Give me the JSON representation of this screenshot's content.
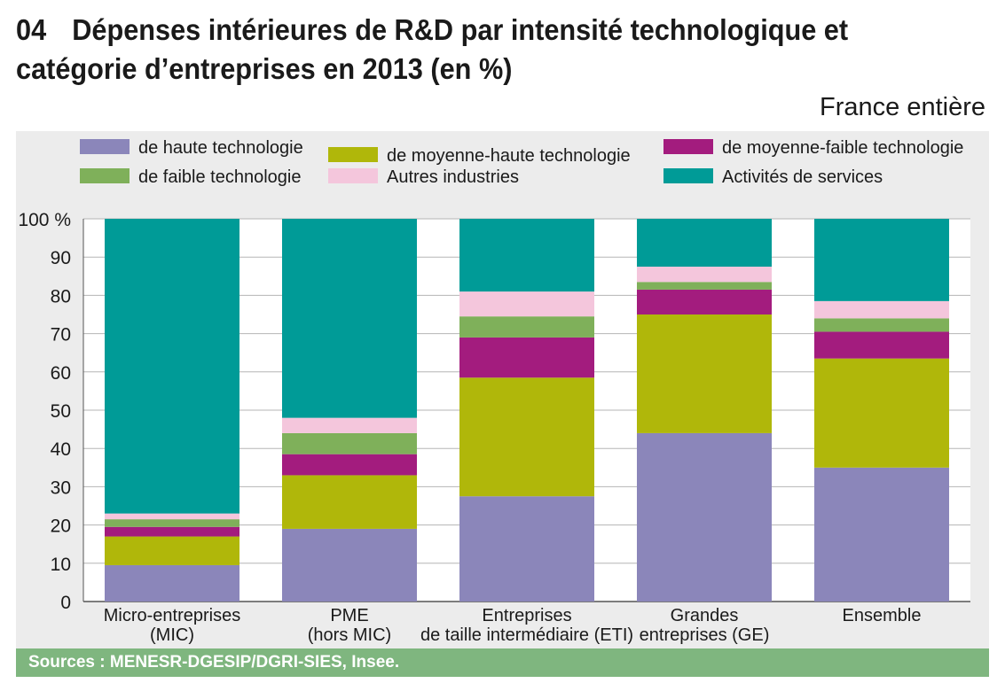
{
  "figure": {
    "number": "04",
    "title": "Dépenses intérieures de R&D par intensité technologique et catégorie d’entreprises en 2013 (en %)",
    "scope": "France entière",
    "sources": "Sources : MENESR-DGESIP/DGRI-SIES, Insee."
  },
  "chart_data": {
    "type": "bar",
    "stacked": true,
    "categories": [
      [
        "Micro-entreprises",
        "(MIC)"
      ],
      [
        "PME",
        "(hors MIC)"
      ],
      [
        "Entreprises",
        "de taille intermédiaire (ETI)"
      ],
      [
        "Grandes",
        "entreprises (GE)"
      ],
      [
        "Ensemble"
      ]
    ],
    "ylim": [
      0,
      100
    ],
    "yticks": [
      0,
      10,
      20,
      30,
      40,
      50,
      60,
      70,
      80,
      90,
      100
    ],
    "ytick_labels": [
      "0",
      "10",
      "20",
      "30",
      "40",
      "50",
      "60",
      "70",
      "80",
      "90",
      "100 %"
    ],
    "grid": true,
    "legend_position": "top",
    "series": [
      {
        "name": "de haute technologie",
        "color": "#8b86ba",
        "values": [
          9.5,
          19,
          27.5,
          44,
          35
        ]
      },
      {
        "name": "de moyenne-haute technologie",
        "color": "#b0b70a",
        "values": [
          7.5,
          14,
          31,
          31,
          28.5
        ]
      },
      {
        "name": "de moyenne-faible technologie",
        "color": "#a31c7e",
        "values": [
          2.5,
          5.5,
          10.5,
          6.5,
          7
        ]
      },
      {
        "name": "de faible technologie",
        "color": "#7fb05a",
        "values": [
          2,
          5.5,
          5.5,
          2,
          3.5
        ]
      },
      {
        "name": "Autres industries",
        "color": "#f4c6dc",
        "values": [
          1.5,
          4,
          6.5,
          4,
          4.5
        ]
      },
      {
        "name": "Activités de services",
        "color": "#009b97",
        "values": [
          77,
          52,
          19,
          12.5,
          21.5
        ]
      }
    ]
  }
}
